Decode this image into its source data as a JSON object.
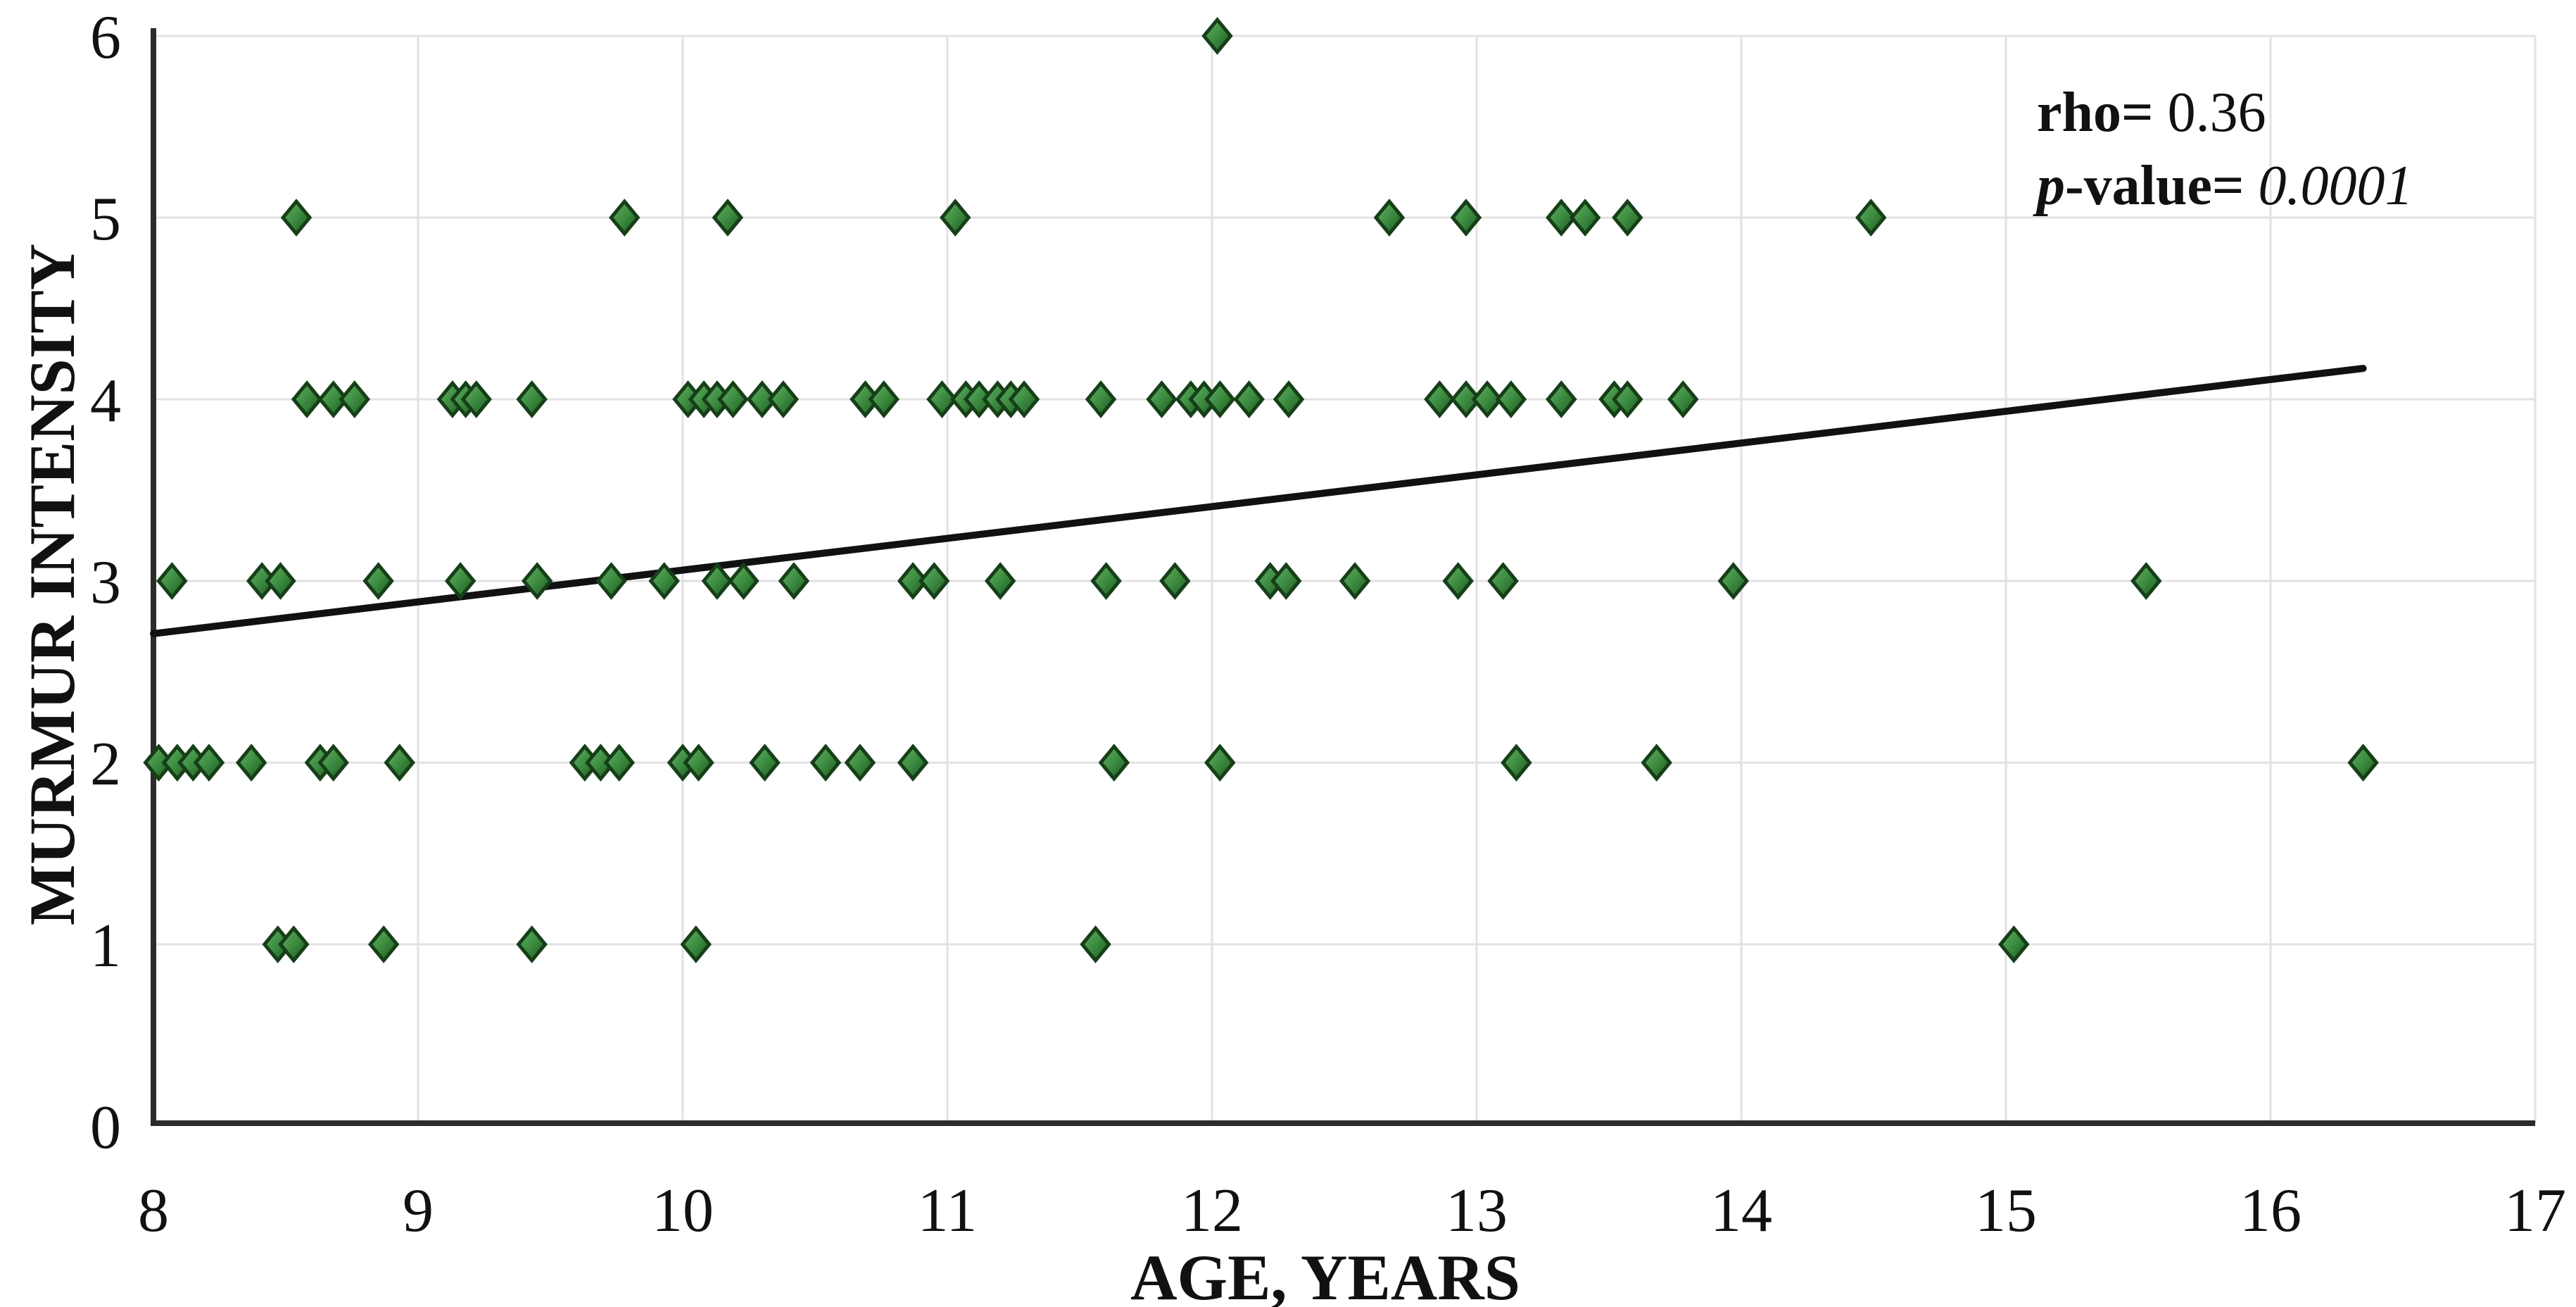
{
  "colors": {
    "background": "#ffffff",
    "grid": "#e2e2e2",
    "axis_spine": "#2b2b2b",
    "text": "#111111",
    "trend_line": "#111111",
    "marker_fill": "#3c8c40",
    "marker_fill_light": "#66b169",
    "marker_fill_dark": "#1d5221",
    "marker_edge": "#163f18"
  },
  "chart_data": {
    "type": "scatter",
    "title": "",
    "xlabel": "AGE, YEARS",
    "ylabel": "MURMUR INTENSITY",
    "xlim": [
      8,
      17
    ],
    "ylim": [
      0,
      6
    ],
    "xticks": [
      "8",
      "9",
      "10",
      "11",
      "12",
      "13",
      "14",
      "15",
      "16",
      "17"
    ],
    "yticks": [
      "0",
      "1",
      "2",
      "3",
      "4",
      "5",
      "6"
    ],
    "grid": true,
    "legend_position": "none",
    "marker": "diamond",
    "annotation": {
      "rho_label": "rho=",
      "rho_value": " 0.36",
      "p_italic": "p",
      "p_label": "-value=",
      "p_value": " 0.0001"
    },
    "trendline": {
      "x": [
        8.0,
        16.35
      ],
      "y": [
        2.71,
        4.17
      ]
    },
    "series": [
      {
        "name": "murmur-intensity-vs-age",
        "points": [
          [
            8.47,
            1
          ],
          [
            8.53,
            1
          ],
          [
            8.87,
            1
          ],
          [
            9.43,
            1
          ],
          [
            10.05,
            1
          ],
          [
            11.56,
            1
          ],
          [
            15.03,
            1
          ],
          [
            8.02,
            2
          ],
          [
            8.09,
            2
          ],
          [
            8.15,
            2
          ],
          [
            8.21,
            2
          ],
          [
            8.37,
            2
          ],
          [
            8.63,
            2
          ],
          [
            8.68,
            2
          ],
          [
            8.93,
            2
          ],
          [
            9.63,
            2
          ],
          [
            9.69,
            2
          ],
          [
            9.76,
            2
          ],
          [
            10.0,
            2
          ],
          [
            10.06,
            2
          ],
          [
            10.31,
            2
          ],
          [
            10.54,
            2
          ],
          [
            10.67,
            2
          ],
          [
            10.87,
            2
          ],
          [
            11.63,
            2
          ],
          [
            12.03,
            2
          ],
          [
            13.15,
            2
          ],
          [
            13.68,
            2
          ],
          [
            16.35,
            2
          ],
          [
            8.07,
            3
          ],
          [
            8.41,
            3
          ],
          [
            8.48,
            3
          ],
          [
            8.85,
            3
          ],
          [
            9.16,
            3
          ],
          [
            9.45,
            3
          ],
          [
            9.73,
            3
          ],
          [
            9.93,
            3
          ],
          [
            10.13,
            3
          ],
          [
            10.23,
            3
          ],
          [
            10.42,
            3
          ],
          [
            10.87,
            3
          ],
          [
            10.95,
            3
          ],
          [
            11.2,
            3
          ],
          [
            11.6,
            3
          ],
          [
            11.86,
            3
          ],
          [
            12.22,
            3
          ],
          [
            12.28,
            3
          ],
          [
            12.54,
            3
          ],
          [
            12.93,
            3
          ],
          [
            13.1,
            3
          ],
          [
            13.97,
            3
          ],
          [
            15.53,
            3
          ],
          [
            8.58,
            4
          ],
          [
            8.68,
            4
          ],
          [
            8.76,
            4
          ],
          [
            9.13,
            4
          ],
          [
            9.18,
            4
          ],
          [
            9.22,
            4
          ],
          [
            9.43,
            4
          ],
          [
            10.02,
            4
          ],
          [
            10.08,
            4
          ],
          [
            10.13,
            4
          ],
          [
            10.19,
            4
          ],
          [
            10.3,
            4
          ],
          [
            10.38,
            4
          ],
          [
            10.69,
            4
          ],
          [
            10.76,
            4
          ],
          [
            10.98,
            4
          ],
          [
            11.07,
            4
          ],
          [
            11.12,
            4
          ],
          [
            11.19,
            4
          ],
          [
            11.24,
            4
          ],
          [
            11.29,
            4
          ],
          [
            11.58,
            4
          ],
          [
            11.81,
            4
          ],
          [
            11.92,
            4
          ],
          [
            11.97,
            4
          ],
          [
            12.03,
            4
          ],
          [
            12.14,
            4
          ],
          [
            12.29,
            4
          ],
          [
            12.86,
            4
          ],
          [
            12.96,
            4
          ],
          [
            13.04,
            4
          ],
          [
            13.13,
            4
          ],
          [
            13.32,
            4
          ],
          [
            13.52,
            4
          ],
          [
            13.57,
            4
          ],
          [
            13.78,
            4
          ],
          [
            8.54,
            5
          ],
          [
            9.78,
            5
          ],
          [
            10.17,
            5
          ],
          [
            11.03,
            5
          ],
          [
            12.67,
            5
          ],
          [
            12.96,
            5
          ],
          [
            13.32,
            5
          ],
          [
            13.41,
            5
          ],
          [
            13.57,
            5
          ],
          [
            14.49,
            5
          ],
          [
            12.02,
            6
          ]
        ]
      }
    ]
  }
}
